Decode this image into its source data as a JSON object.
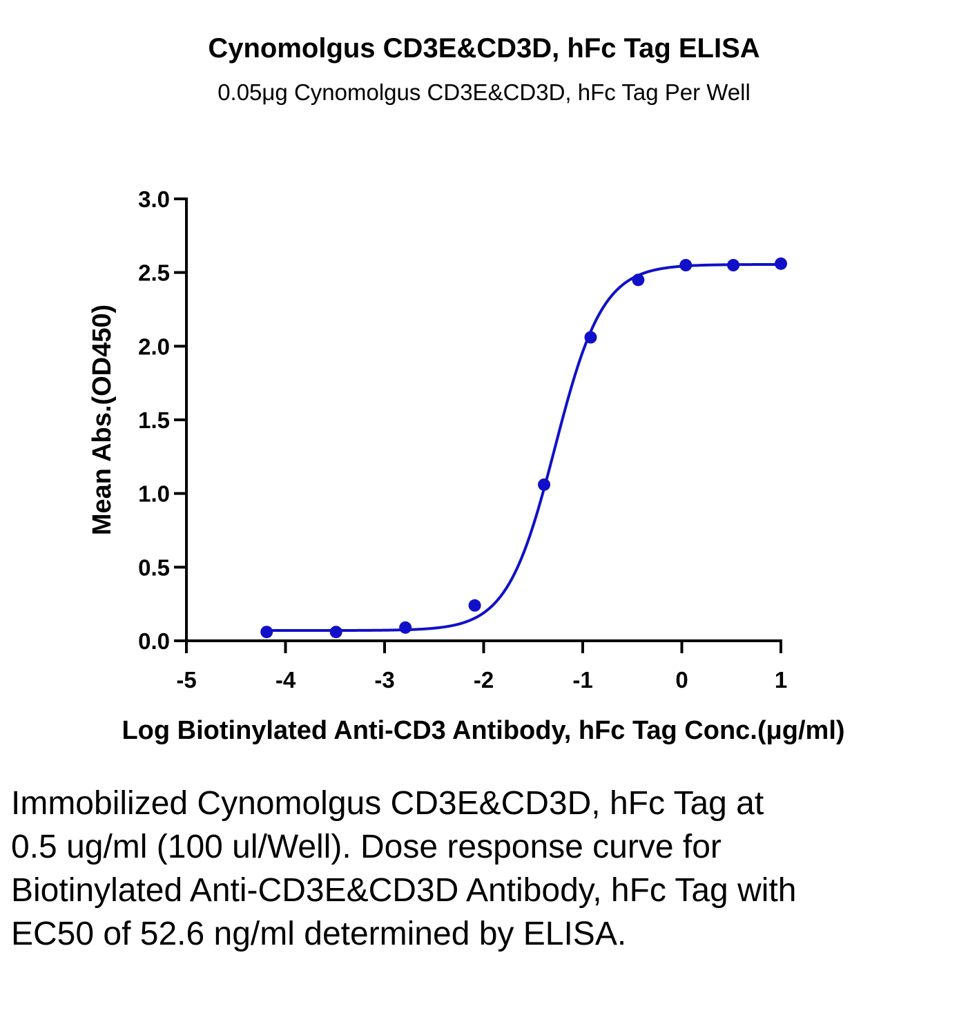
{
  "chart_data": {
    "type": "scatter",
    "title": "Cynomolgus CD3E&CD3D, hFc Tag ELISA",
    "subtitle": "0.05μg Cynomolgus CD3E&CD3D, hFc Tag Per Well",
    "xlabel": "Log Biotinylated Anti-CD3 Antibody, hFc Tag Conc.(μg/ml)",
    "ylabel": "Mean Abs.(OD450)",
    "xlim": [
      -5,
      1
    ],
    "ylim": [
      0,
      3.0
    ],
    "x_ticks": [
      -5,
      -4,
      -3,
      -2,
      -1,
      0,
      1
    ],
    "x_tick_labels": [
      "-5",
      "-4",
      "-3",
      "-2",
      "-1",
      "0",
      "1"
    ],
    "y_ticks": [
      0,
      0.5,
      1.0,
      1.5,
      2.0,
      2.5,
      3.0
    ],
    "y_tick_labels": [
      "0.0",
      "0.5",
      "1.0",
      "1.5",
      "2.0",
      "2.5",
      "3.0"
    ],
    "grid": false,
    "color": "#1010c8",
    "series": [
      {
        "x": [
          -4.19,
          -3.49,
          -2.79,
          -2.09,
          -1.39,
          -0.92,
          -0.44,
          0.04,
          0.52,
          1.0
        ],
        "y": [
          0.06,
          0.06,
          0.09,
          0.24,
          1.06,
          2.06,
          2.45,
          2.55,
          2.55,
          2.56
        ]
      }
    ],
    "fit_curve": {
      "model": "4PL",
      "bottom": 0.07,
      "top": 2.555,
      "logEC50": -1.28,
      "hill": 1.8
    }
  },
  "caption": "Immobilized Cynomolgus CD3E&CD3D, hFc Tag at 0.5 ug/ml (100 ul/Well). Dose response curve for Biotinylated Anti-CD3E&CD3D Antibody, hFc Tag with EC50 of 52.6 ng/ml determined by ELISA."
}
